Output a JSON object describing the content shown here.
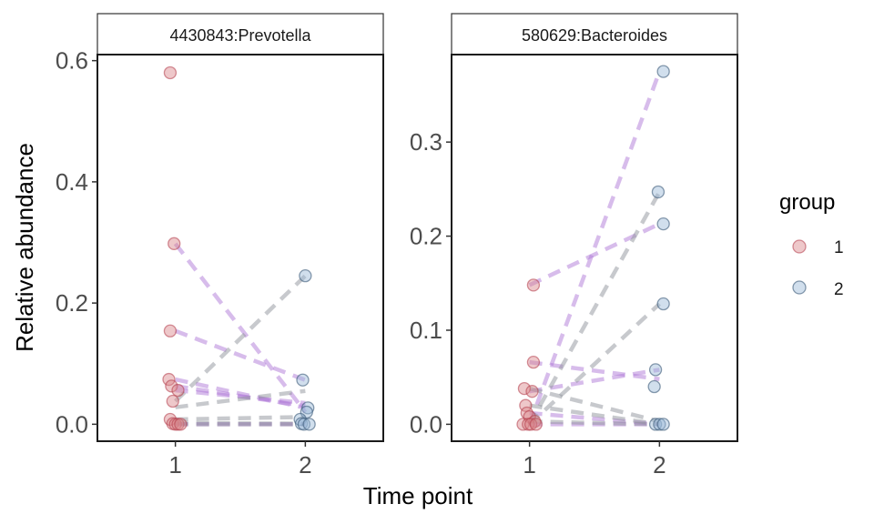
{
  "chart_data": {
    "type": "scatter",
    "xlabel": "Time point",
    "ylabel": "Relative abundance",
    "x_ticks": [
      "1",
      "2"
    ],
    "x_range": [
      0.4,
      2.6
    ],
    "legend": {
      "title": "group",
      "position": "right",
      "entries": [
        {
          "label": "1",
          "color": "#d9868a"
        },
        {
          "label": "2",
          "color": "#9ab8d6"
        }
      ]
    },
    "line_colors": {
      "purple": "#b07ad8",
      "gray": "#8f939c"
    },
    "facets": [
      {
        "title": "4430843:Prevotella",
        "ylim": [
          -0.028,
          0.61
        ],
        "y_ticks": [
          0.0,
          0.2,
          0.4,
          0.6
        ],
        "y_tick_labels": [
          "0.0",
          "0.2",
          "0.4",
          "0.6"
        ],
        "points_t1": [
          {
            "x": 0.96,
            "y": 0.58
          },
          {
            "x": 0.99,
            "y": 0.298
          },
          {
            "x": 0.96,
            "y": 0.154
          },
          {
            "x": 0.95,
            "y": 0.074
          },
          {
            "x": 0.97,
            "y": 0.063
          },
          {
            "x": 1.02,
            "y": 0.056
          },
          {
            "x": 0.98,
            "y": 0.038
          },
          {
            "x": 0.96,
            "y": 0.008
          },
          {
            "x": 0.98,
            "y": 0.001
          },
          {
            "x": 1.0,
            "y": 0.0
          },
          {
            "x": 1.02,
            "y": 0.0
          },
          {
            "x": 1.04,
            "y": 0.0
          }
        ],
        "points_t2": [
          {
            "x": 2.0,
            "y": 0.245
          },
          {
            "x": 1.98,
            "y": 0.073
          },
          {
            "x": 2.02,
            "y": 0.027
          },
          {
            "x": 2.01,
            "y": 0.02
          },
          {
            "x": 1.96,
            "y": 0.008
          },
          {
            "x": 1.97,
            "y": 0.001
          },
          {
            "x": 1.99,
            "y": 0.0
          },
          {
            "x": 2.03,
            "y": 0.0
          }
        ],
        "lines": [
          {
            "x1": 1.0,
            "y1": 0.298,
            "x2": 2.0,
            "y2": 0.02,
            "color": "purple"
          },
          {
            "x1": 1.0,
            "y1": 0.154,
            "x2": 2.0,
            "y2": 0.073,
            "color": "purple"
          },
          {
            "x1": 1.0,
            "y1": 0.074,
            "x2": 2.0,
            "y2": 0.027,
            "color": "purple"
          },
          {
            "x1": 1.0,
            "y1": 0.063,
            "x2": 2.0,
            "y2": 0.03,
            "color": "purple"
          },
          {
            "x1": 1.0,
            "y1": 0.056,
            "x2": 2.0,
            "y2": 0.035,
            "color": "purple"
          },
          {
            "x1": 1.0,
            "y1": 0.038,
            "x2": 2.0,
            "y2": 0.245,
            "color": "gray"
          },
          {
            "x1": 1.0,
            "y1": 0.028,
            "x2": 2.0,
            "y2": 0.055,
            "color": "gray"
          },
          {
            "x1": 1.0,
            "y1": 0.008,
            "x2": 2.0,
            "y2": 0.012,
            "color": "gray"
          },
          {
            "x1": 1.0,
            "y1": 0.002,
            "x2": 2.0,
            "y2": 0.001,
            "color": "gray"
          },
          {
            "x1": 1.0,
            "y1": 0.0,
            "x2": 2.0,
            "y2": 0.0,
            "color": "purple"
          },
          {
            "x1": 1.0,
            "y1": 0.0,
            "x2": 2.0,
            "y2": 0.0,
            "color": "gray"
          }
        ]
      },
      {
        "title": "580629:Bacteroides",
        "ylim": [
          -0.018,
          0.393
        ],
        "y_ticks": [
          0.0,
          0.1,
          0.2,
          0.3
        ],
        "y_tick_labels": [
          "0.0",
          "0.1",
          "0.2",
          "0.3"
        ],
        "points_t1": [
          {
            "x": 1.03,
            "y": 0.148
          },
          {
            "x": 1.03,
            "y": 0.066
          },
          {
            "x": 0.96,
            "y": 0.038
          },
          {
            "x": 1.02,
            "y": 0.035
          },
          {
            "x": 0.97,
            "y": 0.02
          },
          {
            "x": 0.98,
            "y": 0.012
          },
          {
            "x": 1.0,
            "y": 0.008
          },
          {
            "x": 1.04,
            "y": 0.003
          },
          {
            "x": 0.95,
            "y": 0.0
          },
          {
            "x": 0.99,
            "y": 0.0
          },
          {
            "x": 1.01,
            "y": 0.0
          },
          {
            "x": 1.05,
            "y": 0.0
          }
        ],
        "points_t2": [
          {
            "x": 2.03,
            "y": 0.375
          },
          {
            "x": 1.99,
            "y": 0.247
          },
          {
            "x": 2.03,
            "y": 0.213
          },
          {
            "x": 2.03,
            "y": 0.128
          },
          {
            "x": 1.97,
            "y": 0.058
          },
          {
            "x": 1.96,
            "y": 0.04
          },
          {
            "x": 1.97,
            "y": 0.0
          },
          {
            "x": 2.0,
            "y": 0.0
          },
          {
            "x": 2.03,
            "y": 0.0
          }
        ],
        "lines": [
          {
            "x1": 1.0,
            "y1": 0.148,
            "x2": 2.0,
            "y2": 0.213,
            "color": "purple"
          },
          {
            "x1": 1.0,
            "y1": 0.0,
            "x2": 2.0,
            "y2": 0.375,
            "color": "purple"
          },
          {
            "x1": 1.0,
            "y1": 0.066,
            "x2": 2.0,
            "y2": 0.048,
            "color": "purple"
          },
          {
            "x1": 1.0,
            "y1": 0.035,
            "x2": 2.0,
            "y2": 0.058,
            "color": "purple"
          },
          {
            "x1": 1.0,
            "y1": 0.012,
            "x2": 2.0,
            "y2": 0.0,
            "color": "purple"
          },
          {
            "x1": 1.0,
            "y1": 0.0,
            "x2": 2.0,
            "y2": 0.0,
            "color": "purple"
          },
          {
            "x1": 1.0,
            "y1": 0.0,
            "x2": 2.0,
            "y2": 0.247,
            "color": "gray"
          },
          {
            "x1": 1.0,
            "y1": 0.0,
            "x2": 2.0,
            "y2": 0.128,
            "color": "gray"
          },
          {
            "x1": 1.0,
            "y1": 0.038,
            "x2": 2.0,
            "y2": 0.003,
            "color": "gray"
          },
          {
            "x1": 1.0,
            "y1": 0.02,
            "x2": 2.0,
            "y2": 0.0,
            "color": "gray"
          },
          {
            "x1": 1.0,
            "y1": 0.003,
            "x2": 2.0,
            "y2": 0.0,
            "color": "gray"
          }
        ]
      }
    ]
  }
}
